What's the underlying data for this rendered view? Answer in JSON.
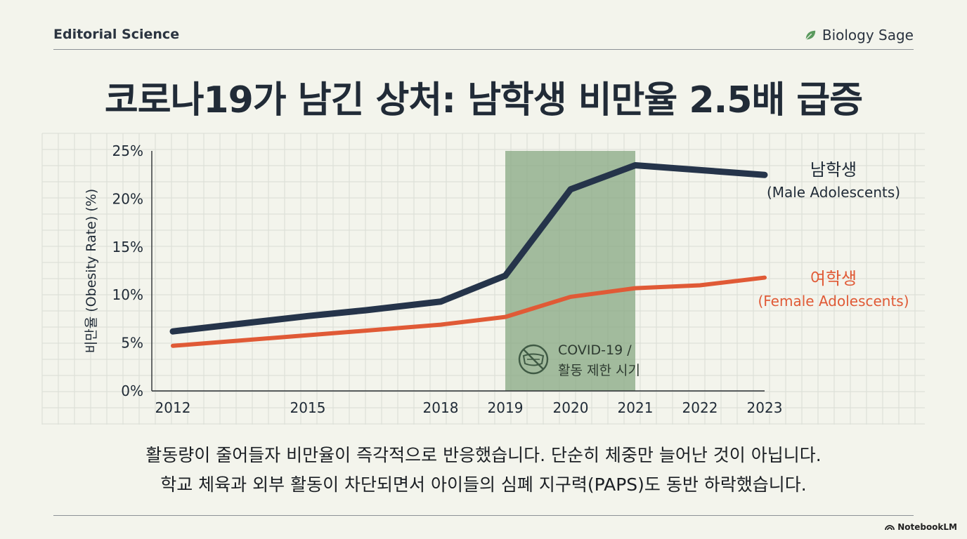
{
  "header": {
    "left_label": "Editorial Science",
    "right_label": "Biology Sage",
    "title": "코로나19가 남긴 상처: 남학생 비만율 2.5배 급증"
  },
  "chart_data": {
    "type": "line",
    "title": "",
    "xlabel": "",
    "ylabel": "비만율 (Obesity Rate) (%)",
    "ylim": [
      0,
      25
    ],
    "yticks": [
      0,
      5,
      10,
      15,
      20,
      25
    ],
    "ytick_labels": [
      "0%",
      "5%",
      "10%",
      "15%",
      "20%",
      "25%"
    ],
    "x": [
      2012,
      2015,
      2018,
      2019,
      2020,
      2021,
      2022,
      2023
    ],
    "xtick_labels": [
      "2012",
      "2015",
      "2018",
      "2019",
      "2020",
      "2021",
      "2022",
      "2023"
    ],
    "series": [
      {
        "name": "남학생",
        "name_sub": "(Male Adolescents)",
        "color": "#25344a",
        "points": [
          [
            2012,
            6.2
          ],
          [
            2015,
            7.8
          ],
          [
            2016.3,
            8.4
          ],
          [
            2018,
            9.3
          ],
          [
            2019,
            12.0
          ],
          [
            2020,
            21.0
          ],
          [
            2021,
            23.5
          ],
          [
            2023,
            22.5
          ]
        ]
      },
      {
        "name": "여학생",
        "name_sub": "(Female Adolescents)",
        "color": "#e05a36",
        "points": [
          [
            2012,
            4.7
          ],
          [
            2015,
            5.8
          ],
          [
            2018,
            6.9
          ],
          [
            2019,
            7.7
          ],
          [
            2020,
            9.8
          ],
          [
            2021,
            10.7
          ],
          [
            2022,
            11.0
          ],
          [
            2023,
            11.8
          ]
        ]
      }
    ],
    "highlight": {
      "x_start": 2019,
      "x_end": 2021,
      "color": "#8aab86",
      "label_line1": "COVID-19 /",
      "label_line2": "활동 제한 시기",
      "icon": "no-mask-icon"
    },
    "grid": true
  },
  "caption": {
    "line1": "활동량이 줄어들자 비만율이 즉각적으로 반응했습니다. 단순히 체중만 늘어난 것이 아닙니다.",
    "line2": "학교 체육과 외부 활동이 차단되면서 아이들의 심폐 지구력(PAPS)도 동반 하락했습니다."
  },
  "footer": {
    "brand": "NotebookLM"
  }
}
